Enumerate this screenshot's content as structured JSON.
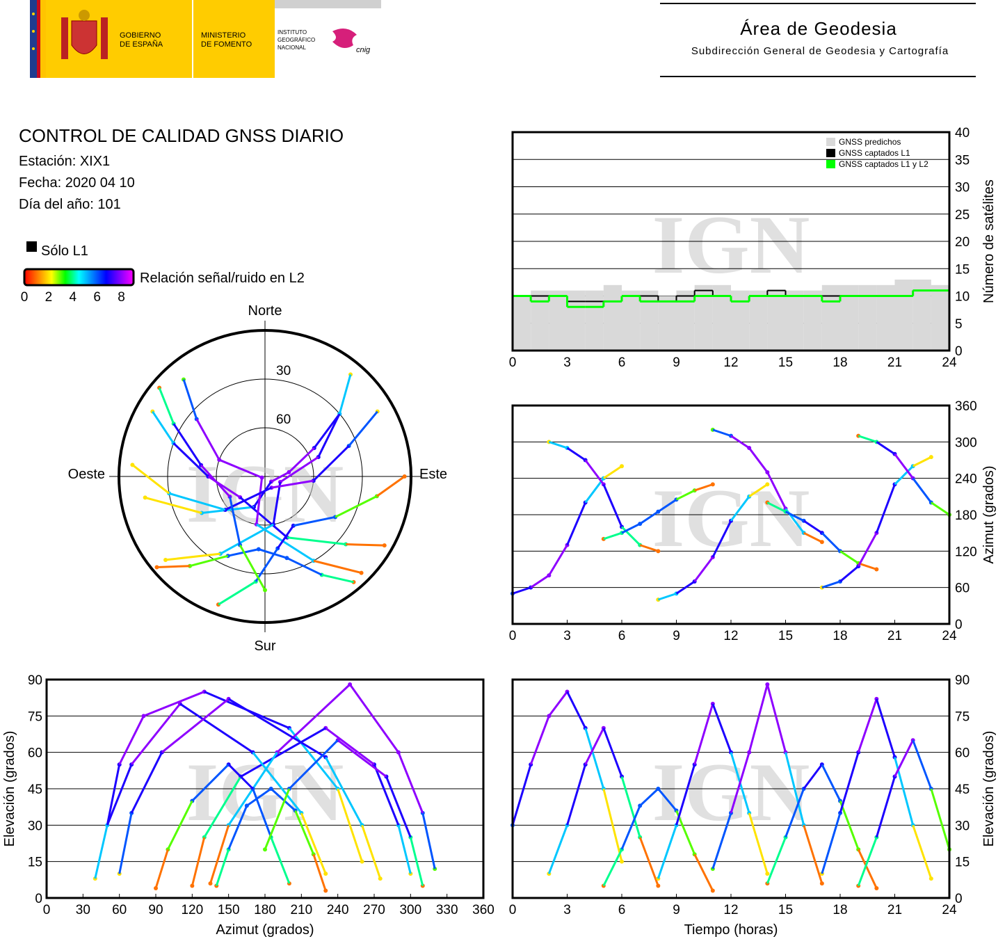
{
  "header": {
    "gov_line1": "GOBIERNO",
    "gov_line2": "DE ESPAÑA",
    "min_line1": "MINISTERIO",
    "min_line2": "DE FOMENTO",
    "ign_line1": "INSTITUTO",
    "ign_line2": "GEOGRÁFICO",
    "ign_line3": "NACIONAL",
    "cnig": "cnig",
    "area": "Área de Geodesia",
    "subdireccion": "Subdirección General de Geodesia y Cartografía"
  },
  "report": {
    "title": "CONTROL DE CALIDAD GNSS DIARIO",
    "station": "Estación: XIX1",
    "date": "Fecha: 2020 04 10",
    "doy": "Día del año: 101"
  },
  "legend": {
    "l1_only": "Sólo L1",
    "l1_only_color": "#000000",
    "colorbar_label": "Relación señal/ruido en L2",
    "colorbar_ticks": [
      0,
      2,
      4,
      6,
      8
    ],
    "colorbar_range": [
      0,
      9
    ],
    "colorbar_colors": [
      "#ff0000",
      "#ff8000",
      "#ffff00",
      "#00ff00",
      "#00ffff",
      "#0080ff",
      "#0000ff",
      "#8000ff",
      "#ff00ff"
    ]
  },
  "watermark": "IGN",
  "tracks": [
    {
      "time": [
        0,
        1,
        2,
        3,
        4,
        5,
        6
      ],
      "azimuth": [
        50,
        60,
        80,
        130,
        200,
        240,
        260
      ],
      "elevation": [
        30,
        55,
        75,
        85,
        70,
        45,
        15
      ],
      "snr": [
        6,
        7,
        8,
        8,
        7,
        5,
        2
      ]
    },
    {
      "time": [
        2,
        3,
        4,
        5,
        6,
        7,
        8
      ],
      "azimuth": [
        300,
        290,
        270,
        230,
        160,
        130,
        120
      ],
      "elevation": [
        10,
        30,
        55,
        70,
        50,
        25,
        5
      ],
      "snr": [
        2,
        5,
        7,
        8,
        7,
        4,
        1
      ]
    },
    {
      "time": [
        5,
        6,
        7,
        8,
        9,
        10,
        11
      ],
      "azimuth": [
        140,
        150,
        165,
        185,
        205,
        220,
        230
      ],
      "elevation": [
        5,
        20,
        38,
        45,
        36,
        18,
        3
      ],
      "snr": [
        1,
        4,
        6,
        6,
        6,
        3,
        1
      ]
    },
    {
      "time": [
        8,
        9,
        10,
        11,
        12,
        13,
        14
      ],
      "azimuth": [
        40,
        50,
        70,
        110,
        170,
        210,
        230
      ],
      "elevation": [
        8,
        30,
        55,
        80,
        60,
        35,
        10
      ],
      "snr": [
        2,
        5,
        7,
        8,
        7,
        5,
        2
      ]
    },
    {
      "time": [
        11,
        12,
        13,
        14,
        15,
        16,
        17
      ],
      "azimuth": [
        320,
        310,
        290,
        250,
        190,
        150,
        135
      ],
      "elevation": [
        12,
        35,
        60,
        88,
        60,
        30,
        6
      ],
      "snr": [
        3,
        6,
        8,
        8,
        8,
        5,
        1
      ]
    },
    {
      "time": [
        14,
        15,
        16,
        17,
        18,
        19,
        20
      ],
      "azimuth": [
        200,
        185,
        170,
        150,
        120,
        100,
        90
      ],
      "elevation": [
        6,
        25,
        45,
        55,
        40,
        20,
        4
      ],
      "snr": [
        1,
        4,
        6,
        7,
        6,
        3,
        1
      ]
    },
    {
      "time": [
        17,
        18,
        19,
        20,
        21,
        22,
        23
      ],
      "azimuth": [
        60,
        70,
        95,
        150,
        230,
        260,
        275
      ],
      "elevation": [
        10,
        35,
        60,
        82,
        58,
        30,
        8
      ],
      "snr": [
        2,
        6,
        7,
        8,
        7,
        5,
        2
      ]
    },
    {
      "time": [
        19,
        20,
        21,
        22,
        23,
        24
      ],
      "azimuth": [
        310,
        300,
        280,
        240,
        200,
        180
      ],
      "elevation": [
        5,
        25,
        50,
        65,
        45,
        20
      ],
      "snr": [
        1,
        4,
        7,
        8,
        6,
        3
      ]
    }
  ],
  "charts": [
    {
      "type": "polar",
      "north": "Norte",
      "south": "Sur",
      "west": "Oeste",
      "east": "Este",
      "rings": [
        30,
        60
      ],
      "elevation_lim": [
        0,
        90
      ]
    },
    {
      "type": "step",
      "ylabel": "Número de satélites",
      "xlim": [
        0,
        24
      ],
      "xticks": [
        0,
        3,
        6,
        9,
        12,
        15,
        18,
        21,
        24
      ],
      "ylim": [
        0,
        40
      ],
      "yticks": [
        0,
        5,
        10,
        15,
        20,
        25,
        30,
        35,
        40
      ],
      "grid": true,
      "series": [
        {
          "name": "GNSS predichos",
          "color": "#d9d9d9",
          "values": [
            10,
            11,
            11,
            11,
            11,
            12,
            11,
            11,
            10,
            11,
            12,
            12,
            11,
            11,
            11,
            11,
            11,
            12,
            12,
            12,
            12,
            13,
            13,
            12
          ]
        },
        {
          "name": "GNSS captados L1",
          "color": "#000000",
          "values": [
            10,
            10,
            10,
            9,
            9,
            9,
            10,
            10,
            9,
            10,
            11,
            10,
            9,
            10,
            11,
            10,
            10,
            10,
            10,
            10,
            10,
            10,
            11,
            11
          ]
        },
        {
          "name": "GNSS captados L1 y L2",
          "color": "#00ff00",
          "values": [
            10,
            9,
            10,
            8,
            8,
            9,
            10,
            9,
            9,
            9,
            10,
            10,
            9,
            10,
            10,
            10,
            10,
            9,
            10,
            10,
            10,
            10,
            11,
            11
          ]
        }
      ]
    },
    {
      "type": "track",
      "ylabel": "Azimut (grados)",
      "xlim": [
        0,
        24
      ],
      "xticks": [
        0,
        3,
        6,
        9,
        12,
        15,
        18,
        21,
        24
      ],
      "ylim": [
        0,
        360
      ],
      "yticks": [
        0,
        60,
        120,
        180,
        240,
        300,
        360
      ],
      "grid": true
    },
    {
      "type": "track",
      "xlabel": "Azimut (grados)",
      "ylabel": "Elevación (grados)",
      "xlim": [
        0,
        360
      ],
      "xticks": [
        0,
        30,
        60,
        90,
        120,
        150,
        180,
        210,
        240,
        270,
        300,
        330,
        360
      ],
      "ylim": [
        0,
        90
      ],
      "yticks": [
        0,
        15,
        30,
        45,
        60,
        75,
        90
      ],
      "grid": true
    },
    {
      "type": "track",
      "xlabel": "Tiempo (horas)",
      "ylabel": "Elevación (grados)",
      "xlim": [
        0,
        24
      ],
      "xticks": [
        0,
        3,
        6,
        9,
        12,
        15,
        18,
        21,
        24
      ],
      "ylim": [
        0,
        90
      ],
      "yticks": [
        0,
        15,
        30,
        45,
        60,
        75,
        90
      ],
      "grid": true
    }
  ]
}
